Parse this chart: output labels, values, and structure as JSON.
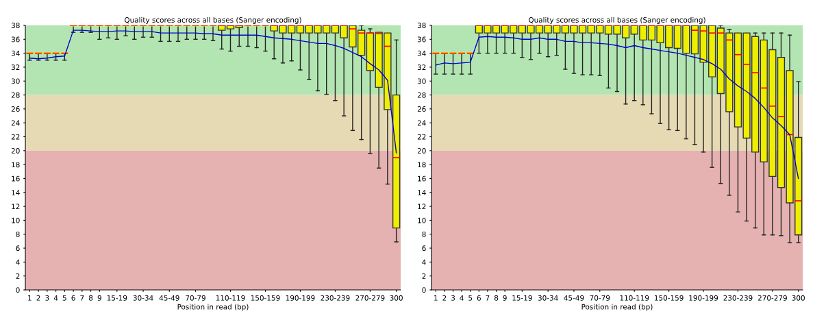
{
  "chart_data": [
    {
      "type": "box",
      "title": "Quality scores across all bases (Sanger encoding)",
      "xlabel": "Position in read (bp)",
      "categories": [
        "1",
        "2",
        "3",
        "4",
        "5",
        "6",
        "7",
        "8",
        "9",
        null,
        "15-19",
        null,
        null,
        "30-34",
        null,
        null,
        "45-49",
        null,
        null,
        "70-79",
        null,
        null,
        null,
        "110-119",
        null,
        null,
        null,
        "150-159",
        null,
        null,
        null,
        "190-199",
        null,
        null,
        null,
        "230-239",
        null,
        null,
        null,
        "270-279",
        null,
        null,
        "300"
      ],
      "ylim": [
        0,
        38
      ],
      "yticks": [
        0,
        2,
        4,
        6,
        8,
        10,
        12,
        14,
        16,
        18,
        20,
        22,
        24,
        26,
        28,
        30,
        32,
        34,
        36,
        38
      ],
      "grid": false,
      "legend": false,
      "bands": [
        {
          "axis": "y",
          "from": 28,
          "to": 38,
          "color": "#b3e5b3"
        },
        {
          "axis": "y",
          "from": 20,
          "to": 28,
          "color": "#e6dab4"
        },
        {
          "axis": "y",
          "from": 0,
          "to": 20,
          "color": "#e5b1b1"
        }
      ],
      "series": [
        {
          "type": "box",
          "color": "#eeee00",
          "boxes": [
            {
              "low": 33,
              "q1": 34,
              "median": 34,
              "q3": 34,
              "high": 34
            },
            {
              "low": 33,
              "q1": 34,
              "median": 34,
              "q3": 34,
              "high": 34
            },
            {
              "low": 33,
              "q1": 34,
              "median": 34,
              "q3": 34,
              "high": 34
            },
            {
              "low": 33,
              "q1": 34,
              "median": 34,
              "q3": 34,
              "high": 34
            },
            {
              "low": 33,
              "q1": 34,
              "median": 34,
              "q3": 34,
              "high": 34
            },
            {
              "low": 37,
              "q1": 38,
              "median": 38,
              "q3": 38,
              "high": 38
            },
            {
              "low": 37,
              "q1": 38,
              "median": 38,
              "q3": 38,
              "high": 38
            },
            {
              "low": 37,
              "q1": 38,
              "median": 38,
              "q3": 38,
              "high": 38
            },
            {
              "low": 36,
              "q1": 38,
              "median": 38,
              "q3": 38,
              "high": 38
            },
            {
              "low": 36.2,
              "q1": 38,
              "median": 38,
              "q3": 38,
              "high": 38
            },
            {
              "low": 36,
              "q1": 38,
              "median": 38,
              "q3": 38,
              "high": 38
            },
            {
              "low": 36.5,
              "q1": 38,
              "median": 38,
              "q3": 38,
              "high": 38
            },
            {
              "low": 36,
              "q1": 38,
              "median": 38,
              "q3": 38,
              "high": 38
            },
            {
              "low": 36.3,
              "q1": 38,
              "median": 38,
              "q3": 38,
              "high": 38
            },
            {
              "low": 36.3,
              "q1": 38,
              "median": 38,
              "q3": 38,
              "high": 38
            },
            {
              "low": 35.7,
              "q1": 38,
              "median": 38,
              "q3": 38,
              "high": 38
            },
            {
              "low": 35.7,
              "q1": 38,
              "median": 38,
              "q3": 38,
              "high": 38
            },
            {
              "low": 35.7,
              "q1": 38,
              "median": 38,
              "q3": 38,
              "high": 38
            },
            {
              "low": 36,
              "q1": 38,
              "median": 38,
              "q3": 38,
              "high": 38
            },
            {
              "low": 36,
              "q1": 38,
              "median": 38,
              "q3": 38,
              "high": 38
            },
            {
              "low": 36,
              "q1": 38,
              "median": 38,
              "q3": 38,
              "high": 38
            },
            {
              "low": 35.8,
              "q1": 38,
              "median": 38,
              "q3": 38,
              "high": 38
            },
            {
              "low": 34.6,
              "q1": 37.3,
              "median": 38,
              "q3": 38,
              "high": 38
            },
            {
              "low": 34.3,
              "q1": 37.5,
              "median": 38,
              "q3": 38,
              "high": 38
            },
            {
              "low": 35,
              "q1": 37.7,
              "median": 38,
              "q3": 38,
              "high": 38
            },
            {
              "low": 35,
              "q1": 38,
              "median": 38,
              "q3": 38,
              "high": 38
            },
            {
              "low": 34.8,
              "q1": 38,
              "median": 38,
              "q3": 38,
              "high": 38
            },
            {
              "low": 34.3,
              "q1": 38,
              "median": 38,
              "q3": 38,
              "high": 38
            },
            {
              "low": 33.2,
              "q1": 37.2,
              "median": 38,
              "q3": 38,
              "high": 38
            },
            {
              "low": 32.6,
              "q1": 36.9,
              "median": 38,
              "q3": 38,
              "high": 38
            },
            {
              "low": 32.9,
              "q1": 36.9,
              "median": 38,
              "q3": 38,
              "high": 38
            },
            {
              "low": 31.6,
              "q1": 36.9,
              "median": 38,
              "q3": 38,
              "high": 38
            },
            {
              "low": 30.2,
              "q1": 36.9,
              "median": 38,
              "q3": 38,
              "high": 38
            },
            {
              "low": 28.6,
              "q1": 36.9,
              "median": 38,
              "q3": 38,
              "high": 38
            },
            {
              "low": 28.1,
              "q1": 36.9,
              "median": 38,
              "q3": 38,
              "high": 38
            },
            {
              "low": 27.2,
              "q1": 36.9,
              "median": 38,
              "q3": 38,
              "high": 38
            },
            {
              "low": 25,
              "q1": 36.2,
              "median": 38,
              "q3": 38,
              "high": 38
            },
            {
              "low": 22.9,
              "q1": 34.9,
              "median": 37.5,
              "q3": 38,
              "high": 38
            },
            {
              "low": 21.6,
              "q1": 33.7,
              "median": 36.9,
              "q3": 37.3,
              "high": 38
            },
            {
              "low": 19.6,
              "q1": 31.5,
              "median": 36.9,
              "q3": 36.9,
              "high": 37.5
            },
            {
              "low": 17.5,
              "q1": 29.1,
              "median": 36.8,
              "q3": 37,
              "high": 37
            },
            {
              "low": 15.2,
              "q1": 25.9,
              "median": 35,
              "q3": 36.9,
              "high": 36.9
            },
            {
              "low": 6.9,
              "q1": 8.9,
              "median": 19,
              "q3": 28,
              "high": 35.9
            }
          ]
        },
        {
          "type": "line",
          "color": "#0000cc",
          "values": [
            33.3,
            33.2,
            33.3,
            33.5,
            33.6,
            37.3,
            37.3,
            37.2,
            37.1,
            37.1,
            37.2,
            37.2,
            37.1,
            37.1,
            37.1,
            36.9,
            36.9,
            36.9,
            36.9,
            36.9,
            36.8,
            36.8,
            36.6,
            36.6,
            36.6,
            36.6,
            36.6,
            36.4,
            36.2,
            36.1,
            36.0,
            35.8,
            35.6,
            35.4,
            35.4,
            35.1,
            34.7,
            34.1,
            33.5,
            32.5,
            31.6,
            30.1,
            19.7
          ]
        }
      ]
    },
    {
      "type": "box",
      "title": "Quality scores across all bases (Sanger encoding)",
      "xlabel": "Position in read (bp)",
      "categories": [
        "1",
        "2",
        "3",
        "4",
        "5",
        "6",
        "7",
        "8",
        "9",
        null,
        "15-19",
        null,
        null,
        "30-34",
        null,
        null,
        "45-49",
        null,
        null,
        "70-79",
        null,
        null,
        null,
        "110-119",
        null,
        null,
        null,
        "150-159",
        null,
        null,
        null,
        "190-199",
        null,
        null,
        null,
        "230-239",
        null,
        null,
        null,
        "270-279",
        null,
        null,
        "300"
      ],
      "ylim": [
        0,
        38
      ],
      "yticks": [
        0,
        2,
        4,
        6,
        8,
        10,
        12,
        14,
        16,
        18,
        20,
        22,
        24,
        26,
        28,
        30,
        32,
        34,
        36,
        38
      ],
      "grid": false,
      "legend": false,
      "bands": [
        {
          "axis": "y",
          "from": 28,
          "to": 38,
          "color": "#b3e5b3"
        },
        {
          "axis": "y",
          "from": 20,
          "to": 28,
          "color": "#e6dab4"
        },
        {
          "axis": "y",
          "from": 0,
          "to": 20,
          "color": "#e5b1b1"
        }
      ],
      "series": [
        {
          "type": "box",
          "color": "#eeee00",
          "boxes": [
            {
              "low": 31,
              "q1": 34,
              "median": 34,
              "q3": 34,
              "high": 34
            },
            {
              "low": 31,
              "q1": 34,
              "median": 34,
              "q3": 34,
              "high": 34
            },
            {
              "low": 31,
              "q1": 34,
              "median": 34,
              "q3": 34,
              "high": 34
            },
            {
              "low": 31,
              "q1": 34,
              "median": 34,
              "q3": 34,
              "high": 34
            },
            {
              "low": 31,
              "q1": 34,
              "median": 34,
              "q3": 34,
              "high": 34
            },
            {
              "low": 34,
              "q1": 36.9,
              "median": 38,
              "q3": 38,
              "high": 38
            },
            {
              "low": 34,
              "q1": 36.9,
              "median": 38,
              "q3": 38,
              "high": 38
            },
            {
              "low": 34,
              "q1": 36.9,
              "median": 38,
              "q3": 38,
              "high": 38
            },
            {
              "low": 34,
              "q1": 36.9,
              "median": 38,
              "q3": 38,
              "high": 38
            },
            {
              "low": 34,
              "q1": 36.9,
              "median": 38,
              "q3": 38,
              "high": 38
            },
            {
              "low": 33.4,
              "q1": 36.9,
              "median": 38,
              "q3": 38,
              "high": 38
            },
            {
              "low": 33.1,
              "q1": 36.9,
              "median": 38,
              "q3": 38,
              "high": 38
            },
            {
              "low": 34,
              "q1": 36.9,
              "median": 38,
              "q3": 38,
              "high": 38
            },
            {
              "low": 33.5,
              "q1": 36.9,
              "median": 38,
              "q3": 38,
              "high": 38
            },
            {
              "low": 33.7,
              "q1": 36.9,
              "median": 38,
              "q3": 38,
              "high": 38
            },
            {
              "low": 31.7,
              "q1": 36.9,
              "median": 38,
              "q3": 38,
              "high": 38
            },
            {
              "low": 31.1,
              "q1": 36.9,
              "median": 38,
              "q3": 38,
              "high": 38
            },
            {
              "low": 30.9,
              "q1": 36.9,
              "median": 38,
              "q3": 38,
              "high": 38
            },
            {
              "low": 30.9,
              "q1": 36.9,
              "median": 38,
              "q3": 38,
              "high": 38
            },
            {
              "low": 30.8,
              "q1": 36.9,
              "median": 38,
              "q3": 38,
              "high": 38
            },
            {
              "low": 29,
              "q1": 36.75,
              "median": 38,
              "q3": 38,
              "high": 38
            },
            {
              "low": 28.5,
              "q1": 36.75,
              "median": 38,
              "q3": 38,
              "high": 38
            },
            {
              "low": 26.7,
              "q1": 36.2,
              "median": 38,
              "q3": 38,
              "high": 38
            },
            {
              "low": 27.2,
              "q1": 36.75,
              "median": 38,
              "q3": 38,
              "high": 38
            },
            {
              "low": 26.6,
              "q1": 35.9,
              "median": 38,
              "q3": 38,
              "high": 38
            },
            {
              "low": 25.3,
              "q1": 35.9,
              "median": 38,
              "q3": 38,
              "high": 38
            },
            {
              "low": 23.9,
              "q1": 35.5,
              "median": 38,
              "q3": 38,
              "high": 38
            },
            {
              "low": 23,
              "q1": 34.8,
              "median": 38,
              "q3": 38,
              "high": 38
            },
            {
              "low": 22.9,
              "q1": 34.7,
              "median": 38,
              "q3": 38,
              "high": 38
            },
            {
              "low": 21.7,
              "q1": 34,
              "median": 38,
              "q3": 38,
              "high": 38
            },
            {
              "low": 20.9,
              "q1": 33.9,
              "median": 37.3,
              "q3": 38,
              "high": 38
            },
            {
              "low": 19.8,
              "q1": 32.7,
              "median": 37.2,
              "q3": 38,
              "high": 38
            },
            {
              "low": 17.6,
              "q1": 30.6,
              "median": 36.9,
              "q3": 38,
              "high": 38
            },
            {
              "low": 15.3,
              "q1": 28.2,
              "median": 36.9,
              "q3": 37.6,
              "high": 38
            },
            {
              "low": 13.6,
              "q1": 25.6,
              "median": 35.9,
              "q3": 36.9,
              "high": 37.4
            },
            {
              "low": 11.2,
              "q1": 23.4,
              "median": 33.8,
              "q3": 36.9,
              "high": 36.9
            },
            {
              "low": 9.9,
              "q1": 21.8,
              "median": 32.4,
              "q3": 36.9,
              "high": 36.9
            },
            {
              "low": 8.9,
              "q1": 19.8,
              "median": 31.2,
              "q3": 36.4,
              "high": 36.9
            },
            {
              "low": 7.9,
              "q1": 18.4,
              "median": 29,
              "q3": 35.9,
              "high": 36.9
            },
            {
              "low": 7.9,
              "q1": 16.3,
              "median": 26.4,
              "q3": 34.5,
              "high": 36.9
            },
            {
              "low": 7.8,
              "q1": 14.7,
              "median": 24.9,
              "q3": 33.4,
              "high": 36.9
            },
            {
              "low": 6.8,
              "q1": 12.5,
              "median": 22.3,
              "q3": 31.5,
              "high": 36.6
            },
            {
              "low": 6.8,
              "q1": 7.9,
              "median": 12.8,
              "q3": 21.9,
              "high": 29.9
            }
          ]
        },
        {
          "type": "line",
          "color": "#0000cc",
          "values": [
            32.3,
            32.6,
            32.5,
            32.6,
            32.7,
            36.3,
            36.4,
            36.3,
            36.3,
            36.2,
            36.0,
            36.0,
            36.2,
            36.0,
            36.0,
            35.7,
            35.7,
            35.5,
            35.5,
            35.4,
            35.3,
            35.1,
            34.8,
            35.1,
            34.8,
            34.6,
            34.4,
            34.2,
            34.0,
            33.7,
            33.4,
            33.1,
            32.5,
            31.7,
            30.3,
            29.3,
            28.5,
            27.5,
            26.2,
            24.7,
            23.6,
            22.3,
            16.0
          ]
        }
      ]
    }
  ]
}
